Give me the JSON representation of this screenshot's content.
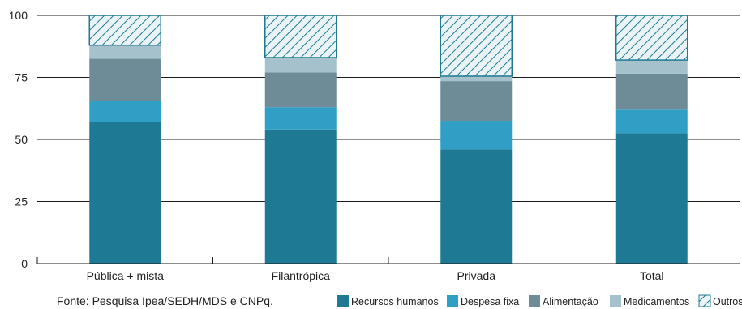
{
  "chart_data": {
    "type": "bar",
    "stacked": true,
    "categories": [
      "Pública + mista",
      "Filantrópica",
      "Privada",
      "Total"
    ],
    "series": [
      {
        "name": "Recursos humanos",
        "color": "#1e7a94",
        "values": [
          57,
          54,
          46,
          52.5
        ]
      },
      {
        "name": "Despesa fixa",
        "color": "#2f9fc6",
        "values": [
          8.5,
          9,
          11.5,
          9.5
        ]
      },
      {
        "name": "Alimentação",
        "color": "#6e8c98",
        "values": [
          17,
          14,
          16,
          14.5
        ]
      },
      {
        "name": "Medicamentos",
        "color": "#a5c1cc",
        "values": [
          5.5,
          6,
          2,
          5.5
        ]
      },
      {
        "name": "Outros",
        "color": "#1e7a94",
        "pattern": "hatch",
        "values": [
          12,
          17,
          24.5,
          18
        ]
      }
    ],
    "ylim": [
      0,
      100
    ],
    "yticks": [
      0,
      25,
      50,
      75,
      100
    ],
    "grid": true,
    "legend_position": "bottom"
  },
  "source": "Fonte: Pesquisa Ipea/SEDH/MDS e CNPq."
}
